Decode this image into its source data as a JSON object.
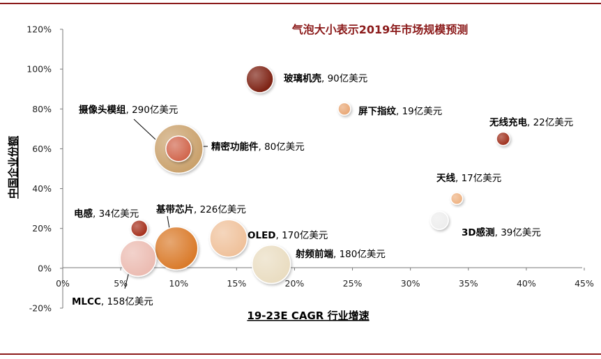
{
  "chart_data": {
    "type": "scatter",
    "title": "气泡大小表示2019年市场规模预测",
    "xlabel": "19-23E CAGR 行业增速",
    "ylabel": "中国企业份额",
    "xlim": [
      0,
      45
    ],
    "ylim": [
      -20,
      120
    ],
    "x_ticks": [
      "0%",
      "5%",
      "10%",
      "15%",
      "20%",
      "25%",
      "30%",
      "35%",
      "40%",
      "45%"
    ],
    "y_ticks": [
      "120%",
      "100%",
      "80%",
      "60%",
      "40%",
      "20%",
      "0%",
      "-20%"
    ],
    "grid": false,
    "legend": "none",
    "points": [
      {
        "label": "摄像头模组",
        "value_text": ", 290亿美元",
        "x": 10,
        "y": 60,
        "size": 290,
        "color": "#c9a06a"
      },
      {
        "label": "精密功能件",
        "value_text": ", 80亿美元",
        "x": 10,
        "y": 60,
        "size": 80,
        "color": "#d0634a"
      },
      {
        "label": "玻璃机壳",
        "value_text": ", 90亿美元",
        "x": 17,
        "y": 95,
        "size": 90,
        "color": "#7a1e0c"
      },
      {
        "label": "屏下指纹",
        "value_text": ", 19亿美元",
        "x": 24.3,
        "y": 80,
        "size": 19,
        "color": "#e8a572"
      },
      {
        "label": "无线充电",
        "value_text": ", 22亿美元",
        "x": 38,
        "y": 65,
        "size": 22,
        "color": "#9c2a18"
      },
      {
        "label": "天线",
        "value_text": ", 17亿美元",
        "x": 34,
        "y": 35,
        "size": 17,
        "color": "#eeb07e"
      },
      {
        "label": "3D感测",
        "value_text": ", 39亿美元",
        "x": 32.5,
        "y": 24,
        "size": 39,
        "color": "#ededed"
      },
      {
        "label": "电感",
        "value_text": ", 34亿美元",
        "x": 6.6,
        "y": 20,
        "size": 34,
        "color": "#a32a18"
      },
      {
        "label": "基带芯片",
        "value_text": ", 226亿美元",
        "x": 9.8,
        "y": 10,
        "size": 226,
        "color": "#d97826"
      },
      {
        "label": "OLED",
        "value_text": ", 170亿美元",
        "x": 14.3,
        "y": 15,
        "size": 170,
        "color": "#efc099"
      },
      {
        "label": "射频前端",
        "value_text": ", 180亿美元",
        "x": 18,
        "y": 2,
        "size": 180,
        "color": "#e9dcc0"
      },
      {
        "label": "MLCC",
        "value_text": ", 158亿美元",
        "x": 6.5,
        "y": 5,
        "size": 158,
        "color": "#ebbab0"
      }
    ]
  }
}
